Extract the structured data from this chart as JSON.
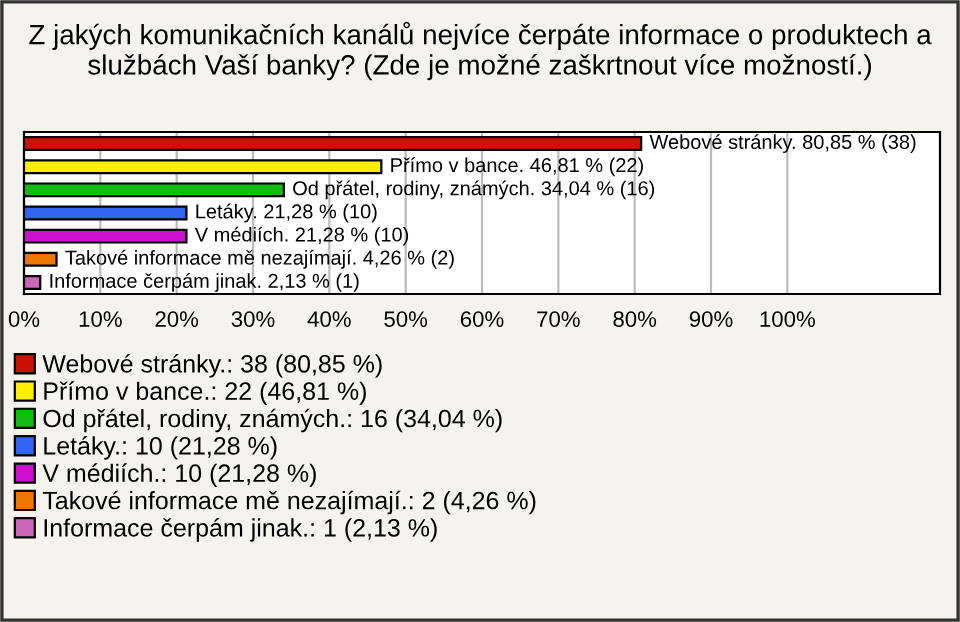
{
  "chart_data": {
    "type": "bar",
    "orientation": "horizontal",
    "title": "Z jakých komunikačních kanálů nejvíce čerpáte informace o produktech a službách Vaší banky? (Zde je možné zaškrtnout více možností.)",
    "categories": [
      null,
      null,
      null,
      null,
      null,
      null,
      null
    ],
    "series": [
      {
        "name": "Webové stránky.: 38 (80,85 %)",
        "color": "#cc1100",
        "values": [
          80.85,
          null,
          null,
          null,
          null,
          null,
          null
        ],
        "value_labels": [
          "Webové stránky. 80,85 % (38)",
          null,
          null,
          null,
          null,
          null,
          null
        ]
      },
      {
        "name": "Přímo v bance.: 22 (46,81 %)",
        "color": "#ffee00",
        "values": [
          null,
          46.81,
          null,
          null,
          null,
          null,
          null
        ],
        "value_labels": [
          null,
          "Přímo v bance. 46,81 % (22)",
          null,
          null,
          null,
          null,
          null
        ]
      },
      {
        "name": "Od přátel, rodiny, známých.: 16 (34,04 %)",
        "color": "#11bb11",
        "values": [
          null,
          null,
          34.04,
          null,
          null,
          null,
          null
        ],
        "value_labels": [
          null,
          null,
          "Od přátel, rodiny, známých. 34,04 % (16)",
          null,
          null,
          null,
          null
        ]
      },
      {
        "name": "Letáky.: 10 (21,28 %)",
        "color": "#3366ee",
        "values": [
          null,
          null,
          null,
          21.28,
          null,
          null,
          null
        ],
        "value_labels": [
          null,
          null,
          null,
          "Letáky. 21,28 % (10)",
          null,
          null,
          null
        ]
      },
      {
        "name": "V médiích.: 10 (21,28 %)",
        "color": "#cc11cc",
        "values": [
          null,
          null,
          null,
          null,
          21.28,
          null,
          null
        ],
        "value_labels": [
          null,
          null,
          null,
          null,
          "V médiích. 21,28 % (10)",
          null,
          null
        ]
      },
      {
        "name": "Takové informace mě nezajímají.: 2 (4,26 %)",
        "color": "#ee7700",
        "values": [
          null,
          null,
          null,
          null,
          null,
          4.26,
          null
        ],
        "value_labels": [
          null,
          null,
          null,
          null,
          null,
          "Takové informace mě nezajímají. 4,26 % (2)",
          null
        ]
      },
      {
        "name": "Informace čerpám jinak.: 1 (2,13 %)",
        "color": "#cc66bb",
        "values": [
          null,
          null,
          null,
          null,
          null,
          null,
          2.13
        ],
        "value_labels": [
          null,
          null,
          null,
          null,
          null,
          null,
          "Informace čerpám jinak. 2,13 % (1)"
        ]
      }
    ],
    "xlim": [
      0,
      120
    ],
    "xticks": [
      {
        "value": 0,
        "label": "0%"
      },
      {
        "value": 10,
        "label": "10%"
      },
      {
        "value": 20,
        "label": "20%"
      },
      {
        "value": 30,
        "label": "30%"
      },
      {
        "value": 40,
        "label": "40%"
      },
      {
        "value": 50,
        "label": "50%"
      },
      {
        "value": 60,
        "label": "60%"
      },
      {
        "value": 70,
        "label": "70%"
      },
      {
        "value": 80,
        "label": "80%"
      },
      {
        "value": 90,
        "label": "90%"
      },
      {
        "value": 100,
        "label": "100%"
      }
    ],
    "grid": "x",
    "legend": "bottom"
  }
}
